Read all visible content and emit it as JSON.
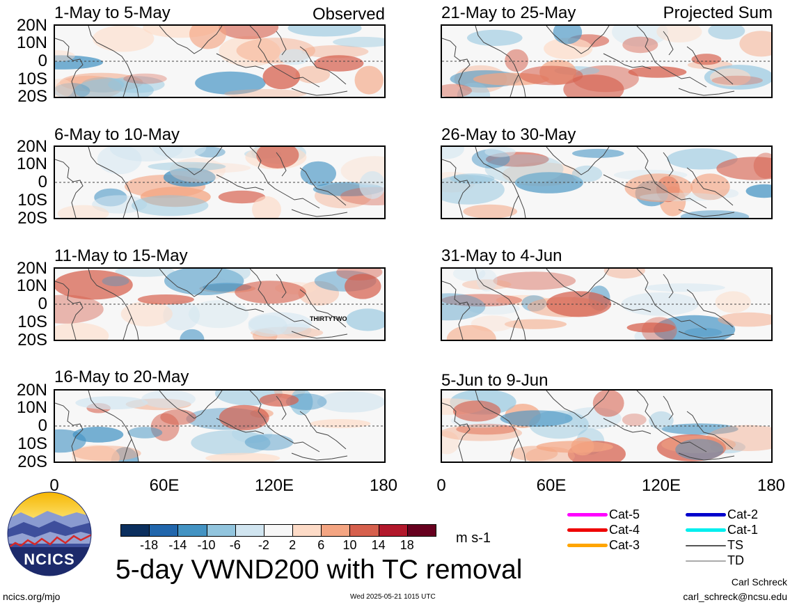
{
  "panels": [
    {
      "title": "1-May to 5-May",
      "tag": "Observed"
    },
    {
      "title": "6-May to 10-May",
      "tag": ""
    },
    {
      "title": "11-May to 15-May",
      "tag": "",
      "storm_label": "THIRTYTWO"
    },
    {
      "title": "16-May to 20-May",
      "tag": ""
    },
    {
      "title": "21-May to 25-May",
      "tag": "Projected Sum"
    },
    {
      "title": "26-May to 30-May",
      "tag": ""
    },
    {
      "title": "31-May to 4-Jun",
      "tag": ""
    },
    {
      "title": "5-Jun to 9-Jun",
      "tag": ""
    }
  ],
  "lat_labels": [
    "20N",
    "10N",
    "0",
    "10S",
    "20S"
  ],
  "lon_labels": [
    "0",
    "60E",
    "120E",
    "180"
  ],
  "colorbar": {
    "colors": [
      "#0b2f5e",
      "#2166ac",
      "#4393c3",
      "#92c5de",
      "#d1e5f0",
      "#f7f7f7",
      "#fddbc7",
      "#f4a582",
      "#d6604d",
      "#b2182b",
      "#67001f"
    ],
    "tick_labels": [
      "-18",
      "-14",
      "-10",
      "-6",
      "-2",
      "2",
      "6",
      "10",
      "14",
      "18"
    ],
    "units": "m s-1"
  },
  "legend": [
    {
      "label": "Cat-5",
      "color": "#ff00ff"
    },
    {
      "label": "Cat-4",
      "color": "#ee0000"
    },
    {
      "label": "Cat-3",
      "color": "#ffa500"
    },
    {
      "label": "Cat-2",
      "color": "#0000cc"
    },
    {
      "label": "Cat-1",
      "color": "#00eeee"
    },
    {
      "label": "TS",
      "color": "#555555"
    },
    {
      "label": "TD",
      "color": "#aaaaaa"
    }
  ],
  "logo_text": "NCICS",
  "main_title": "5-day VWND200 with TC removal",
  "footer": {
    "left": "ncics.org/mjo",
    "center": "Wed 2025-05-21 1015 UTC",
    "author": "Carl Schreck",
    "email": "carl_schreck@ncsu.edu"
  }
}
